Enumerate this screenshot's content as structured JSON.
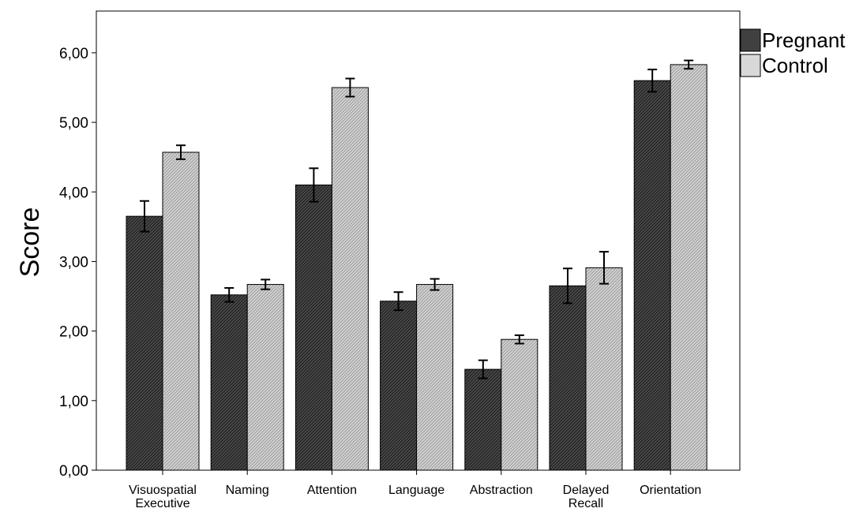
{
  "chart_data": {
    "type": "bar",
    "title": "",
    "xlabel": "",
    "ylabel": "Score",
    "ylim": [
      0,
      6.6
    ],
    "yticks": [
      "0,00",
      "1,00",
      "2,00",
      "3,00",
      "4,00",
      "5,00",
      "6,00"
    ],
    "ytick_values": [
      0,
      1,
      2,
      3,
      4,
      5,
      6
    ],
    "categories": [
      [
        "Visuospatial",
        "Executive"
      ],
      [
        "Naming"
      ],
      [
        "Attention"
      ],
      [
        "Language"
      ],
      [
        "Abstraction"
      ],
      [
        "Delayed",
        "Recall"
      ],
      [
        "Orientation"
      ]
    ],
    "series": [
      {
        "name": "Pregnant",
        "color": "#4a4a4a",
        "values": [
          3.65,
          2.52,
          4.1,
          2.43,
          1.45,
          2.65,
          5.6
        ],
        "error": [
          0.22,
          0.1,
          0.24,
          0.13,
          0.13,
          0.25,
          0.16
        ]
      },
      {
        "name": "Control",
        "color": "#d2d2d2",
        "values": [
          4.57,
          2.67,
          5.5,
          2.67,
          1.88,
          2.91,
          5.83
        ],
        "error": [
          0.1,
          0.07,
          0.13,
          0.08,
          0.06,
          0.23,
          0.06
        ]
      }
    ],
    "legend_position": "top-right",
    "grid": false,
    "error_bars": true
  }
}
